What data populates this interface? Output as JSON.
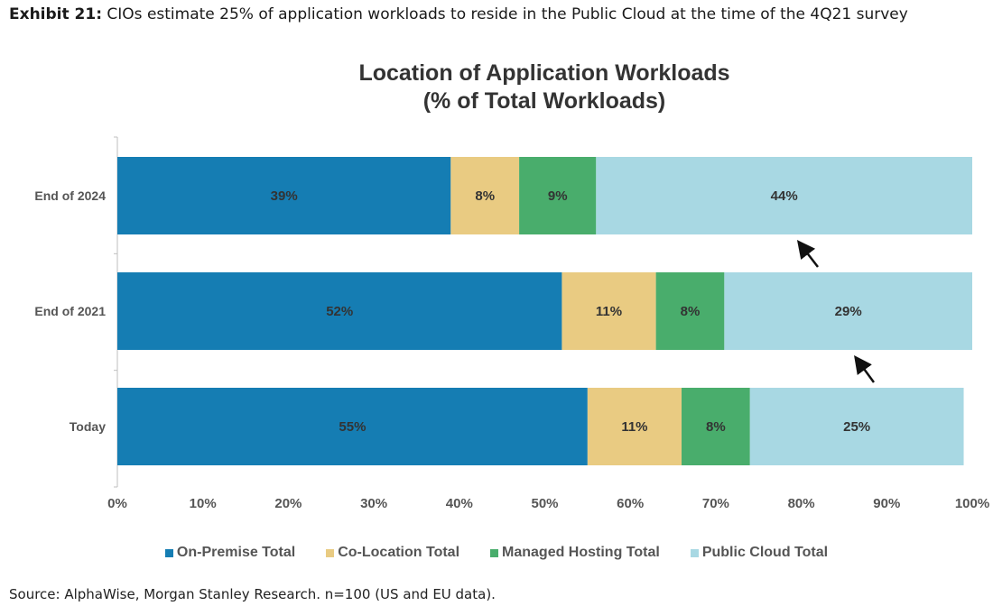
{
  "exhibit": {
    "label": "Exhibit 21:",
    "text": " CIOs estimate 25% of application workloads to reside in the Public Cloud at the time of the 4Q21 survey"
  },
  "source": "Source: AlphaWise, Morgan Stanley Research. n=100 (US and EU data).",
  "chart_data": {
    "type": "bar",
    "orientation": "horizontal",
    "stacked": true,
    "title": "Location of Application Workloads",
    "subtitle": "(% of Total Workloads)",
    "categories": [
      "End of 2024",
      "End of 2021",
      "Today"
    ],
    "series": [
      {
        "name": "On-Premise Total",
        "color": "#157db3",
        "values": [
          39,
          52,
          55
        ],
        "labels": [
          "39%",
          "52%",
          "55%"
        ]
      },
      {
        "name": "Co-Location Total",
        "color": "#e9cb82",
        "values": [
          8,
          11,
          11
        ],
        "labels": [
          "8%",
          "11%",
          "11%"
        ]
      },
      {
        "name": "Managed Hosting Total",
        "color": "#49ad6c",
        "values": [
          9,
          8,
          8
        ],
        "labels": [
          "9%",
          "8%",
          "8%"
        ]
      },
      {
        "name": "Public Cloud Total",
        "color": "#a8d8e3",
        "values": [
          44,
          29,
          25
        ],
        "labels": [
          "44%",
          "29%",
          "25%"
        ]
      }
    ],
    "xlim": [
      0,
      100
    ],
    "xticks": [
      "0%",
      "10%",
      "20%",
      "30%",
      "40%",
      "50%",
      "60%",
      "70%",
      "80%",
      "90%",
      "100%"
    ],
    "legend_position": "bottom",
    "grid": false,
    "annotations": [
      "arrow",
      "arrow"
    ]
  }
}
